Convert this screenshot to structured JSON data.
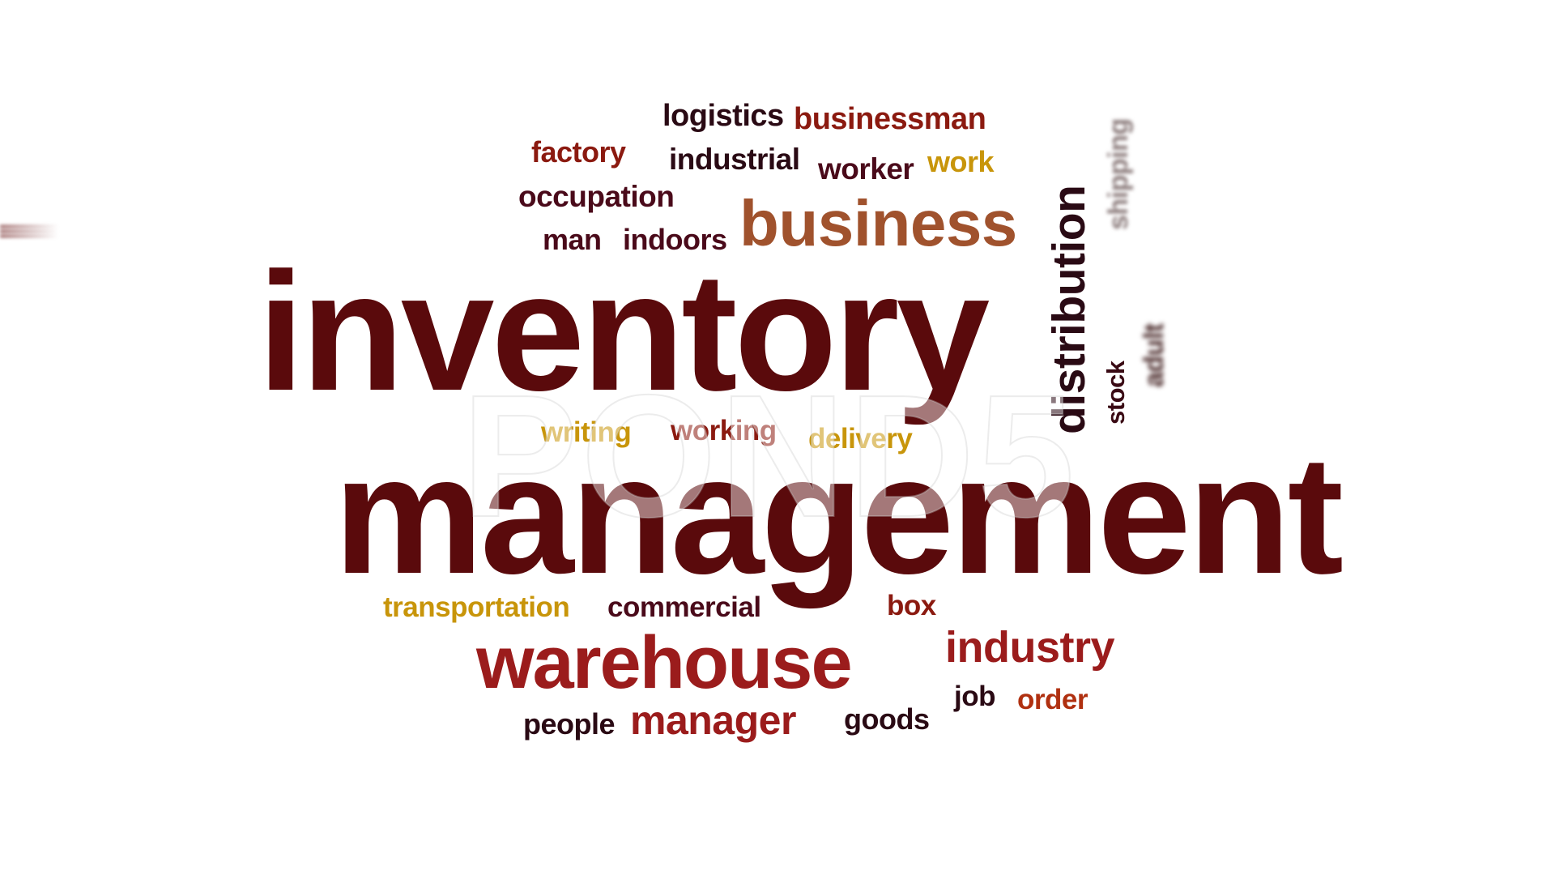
{
  "words": {
    "inventory": "inventory",
    "management": "management",
    "business": "business",
    "warehouse": "warehouse",
    "distribution": "distribution",
    "industry": "industry",
    "manager": "manager",
    "logistics": "logistics",
    "businessman": "businessman",
    "factory": "factory",
    "industrial": "industrial",
    "worker": "worker",
    "work": "work",
    "occupation": "occupation",
    "man": "man",
    "indoors": "indoors",
    "shipping": "shipping",
    "adult": "adult",
    "stock": "stock",
    "writing": "writing",
    "working": "working",
    "delivery": "delivery",
    "transportation": "transportation",
    "commercial": "commercial",
    "box": "box",
    "job": "job",
    "order": "order",
    "people": "people",
    "goods": "goods"
  },
  "watermark": "POND5",
  "colors": {
    "dark_maroon": "#5a0a0c",
    "maroon": "#7a1212",
    "red": "#9b1c1c",
    "brown": "#a0522d",
    "gold": "#c8950a",
    "dark": "#2a0a14"
  }
}
